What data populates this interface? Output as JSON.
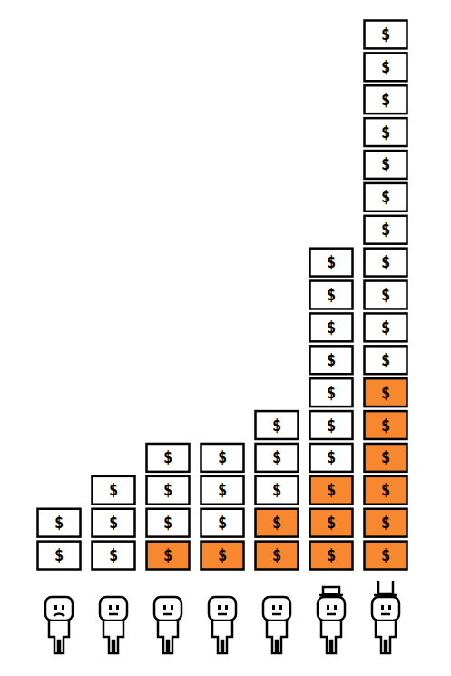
{
  "chart_data": {
    "type": "bar",
    "stacked": true,
    "tick_labels": false,
    "grid": false,
    "annotation": "$",
    "categories": [
      null,
      null,
      null,
      null,
      null,
      null,
      null
    ],
    "ylim": [
      0,
      17
    ],
    "series": [
      {
        "color": "#f7882f",
        "values": [
          0,
          0,
          1,
          1,
          2,
          3,
          6
        ]
      },
      {
        "color": "#ffffff",
        "values": [
          2,
          3,
          3,
          3,
          3,
          7,
          11
        ]
      }
    ]
  }
}
